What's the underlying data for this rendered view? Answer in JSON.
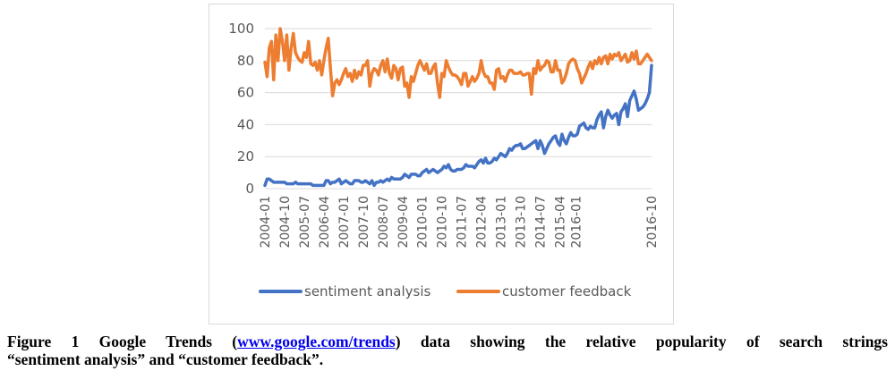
{
  "chart_data": {
    "type": "line",
    "title": "",
    "xlabel": "",
    "ylabel": "",
    "ylim": [
      0,
      100
    ],
    "y_ticks": [
      "0",
      "20",
      "40",
      "60",
      "80",
      "100"
    ],
    "x_tick_labels": [
      "2004-01",
      "2004-10",
      "2005-07",
      "2006-04",
      "2007-01",
      "2007-10",
      "2008-07",
      "2009-04",
      "2010-01",
      "2010-10",
      "2011-07",
      "2012-04",
      "2013-01",
      "2013-10",
      "2014-07",
      "2015-04",
      "2016-01",
      "2016-10"
    ],
    "grid": "horizontal",
    "legend_position": "bottom",
    "series": [
      {
        "name": "sentiment analysis",
        "color": "#4472C4",
        "values": [
          2,
          6,
          6,
          5,
          4,
          4,
          4,
          4,
          4,
          4,
          3,
          3,
          3,
          3,
          4,
          3,
          3,
          3,
          3,
          3,
          3,
          3,
          2,
          2,
          2,
          2,
          2,
          2,
          5,
          5,
          3,
          4,
          4,
          5,
          6,
          3,
          4,
          5,
          4,
          3,
          3,
          5,
          5,
          5,
          4,
          4,
          5,
          4,
          3,
          5,
          2,
          4,
          4,
          5,
          4,
          5,
          6,
          5,
          7,
          6,
          6,
          6,
          6,
          7,
          9,
          8,
          7,
          9,
          9,
          9,
          8,
          8,
          10,
          11,
          12,
          10,
          11,
          12,
          11,
          10,
          11,
          12,
          14,
          13,
          15,
          12,
          11,
          11,
          12,
          12,
          12,
          13,
          15,
          14,
          14,
          14,
          13,
          15,
          17,
          18,
          16,
          19,
          16,
          16,
          17,
          19,
          18,
          20,
          22,
          21,
          20,
          22,
          25,
          24,
          26,
          27,
          27,
          28,
          25,
          25,
          26,
          27,
          28,
          29,
          30,
          25,
          30,
          27,
          22,
          25,
          28,
          30,
          32,
          33,
          29,
          27,
          34,
          30,
          28,
          32,
          35,
          33,
          33,
          34,
          39,
          40,
          41,
          38,
          37,
          39,
          38,
          38,
          43,
          46,
          48,
          38,
          45,
          49,
          46,
          44,
          46,
          47,
          40,
          48,
          50,
          53,
          45,
          55,
          58,
          61,
          56,
          49,
          50,
          51,
          53,
          56,
          60,
          77
        ]
      },
      {
        "name": "customer feedback",
        "color": "#ED7D31",
        "values": [
          79,
          70,
          88,
          92,
          68,
          96,
          80,
          100,
          92,
          80,
          96,
          74,
          88,
          97,
          85,
          82,
          80,
          79,
          85,
          82,
          92,
          78,
          77,
          79,
          74,
          80,
          71,
          80,
          88,
          94,
          75,
          58,
          66,
          68,
          65,
          68,
          72,
          75,
          70,
          72,
          67,
          74,
          69,
          73,
          71,
          77,
          77,
          80,
          64,
          72,
          75,
          74,
          71,
          77,
          80,
          73,
          81,
          72,
          69,
          77,
          75,
          68,
          75,
          76,
          64,
          66,
          57,
          70,
          67,
          72,
          77,
          80,
          77,
          74,
          78,
          72,
          72,
          76,
          78,
          66,
          57,
          72,
          70,
          80,
          76,
          73,
          71,
          71,
          70,
          68,
          65,
          72,
          72,
          64,
          67,
          70,
          67,
          69,
          72,
          80,
          73,
          70,
          70,
          66,
          66,
          62,
          74,
          75,
          69,
          70,
          67,
          71,
          74,
          74,
          72,
          72,
          72,
          73,
          71,
          71,
          72,
          72,
          59,
          75,
          72,
          80,
          74,
          76,
          77,
          80,
          79,
          73,
          73,
          80,
          74,
          74,
          66,
          68,
          72,
          78,
          80,
          81,
          80,
          75,
          72,
          66,
          69,
          72,
          76,
          79,
          75,
          80,
          78,
          82,
          78,
          82,
          83,
          78,
          84,
          81,
          84,
          83,
          85,
          80,
          82,
          84,
          79,
          80,
          85,
          81,
          86,
          78,
          78,
          80,
          82,
          84,
          82,
          80
        ]
      }
    ]
  },
  "caption": {
    "line1_prefix": "Figure 1 Google Trends (",
    "link_text": "www.google.com/trends",
    "line1_suffix": ") data showing the relative popularity of search strings",
    "line2": "“sentiment analysis” and “customer feedback”."
  }
}
